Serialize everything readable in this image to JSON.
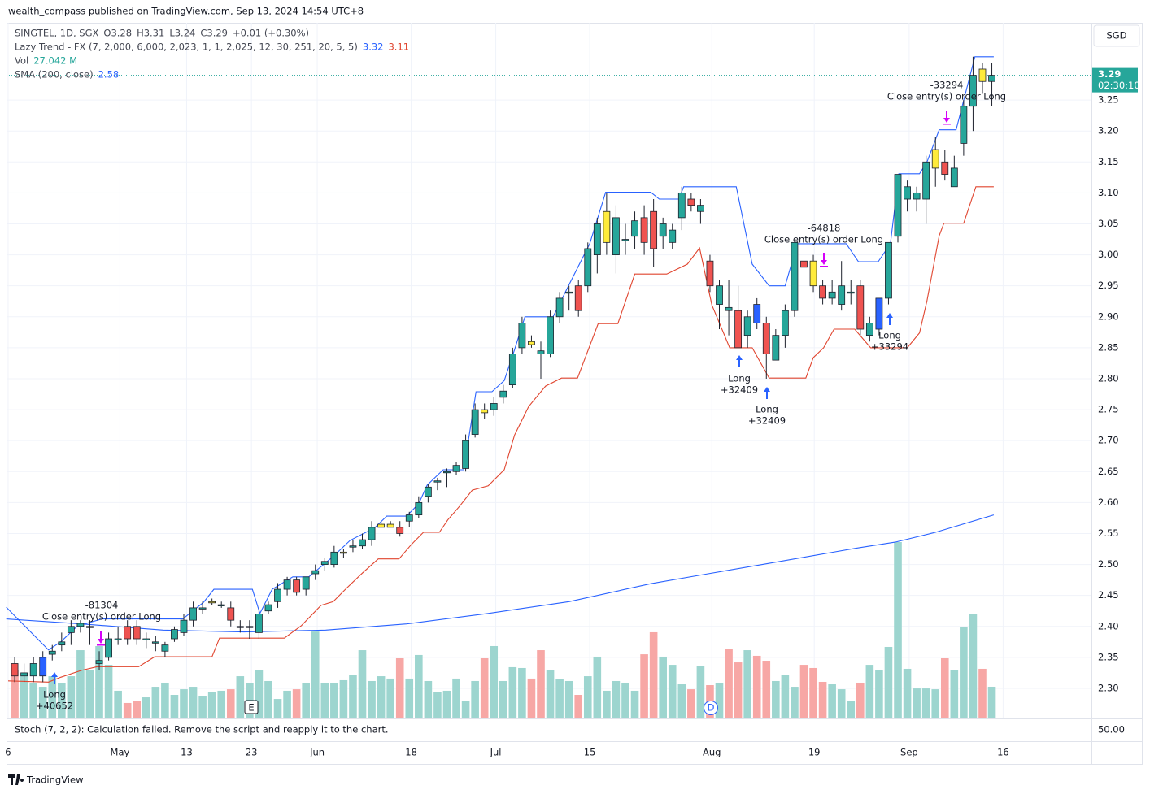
{
  "chart_data": {
    "type": "candlestick",
    "published": "wealth_compass published on TradingView.com, Sep 13, 2024 14:54 UTC+8",
    "legend": {
      "symbol": "SINGTEL, 1D, SGX",
      "open": "O3.28",
      "high": "H3.31",
      "low": "L3.24",
      "close": "C3.29",
      "change": "+0.01 (+0.30%)",
      "indicator": "Lazy Trend - FX (7, 2,000, 6,000, 2,023, 1, 1, 2,025, 12, 30, 251, 20, 5, 5)",
      "upper": "3.32",
      "lower": "3.11",
      "vol": "Vol",
      "vol_value": "27.042 M",
      "sma": "SMA (200, close)",
      "sma_value": "2.58"
    },
    "stoch": "Stoch (7, 2, 2): Calculation failed. Remove the script and reapply it to the chart.",
    "stoch_tick": "50.00",
    "currency": "SGD",
    "last_price_label": "3.29",
    "countdown": "02:30:10",
    "brand": "TradingView",
    "markers": [
      "E",
      "D"
    ],
    "ylim": [
      2.2514,
      3.3748
    ],
    "yticks": [
      {
        "value": 2.3,
        "label": "2.30"
      },
      {
        "value": 2.35,
        "label": "2.35"
      },
      {
        "value": 2.4,
        "label": "2.40"
      },
      {
        "value": 2.45,
        "label": "2.45"
      },
      {
        "value": 2.5,
        "label": "2.50"
      },
      {
        "value": 2.55,
        "label": "2.55"
      },
      {
        "value": 2.6,
        "label": "2.60"
      },
      {
        "value": 2.65,
        "label": "2.65"
      },
      {
        "value": 2.7,
        "label": "2.70"
      },
      {
        "value": 2.75,
        "label": "2.75"
      },
      {
        "value": 2.8,
        "label": "2.80"
      },
      {
        "value": 2.85,
        "label": "2.85"
      },
      {
        "value": 2.9,
        "label": "2.90"
      },
      {
        "value": 2.95,
        "label": "2.95"
      },
      {
        "value": 3.0,
        "label": "3.00"
      },
      {
        "value": 3.05,
        "label": "3.05"
      },
      {
        "value": 3.1,
        "label": "3.10"
      },
      {
        "value": 3.15,
        "label": "3.15"
      },
      {
        "value": 3.2,
        "label": "3.20"
      },
      {
        "value": 3.25,
        "label": "3.25"
      }
    ],
    "xlim": [
      -0.87,
      114.6
    ],
    "xticks": [
      {
        "value": -0.7,
        "label": "6"
      },
      {
        "value": 11.2,
        "label": "May"
      },
      {
        "value": 18.3,
        "label": "13"
      },
      {
        "value": 25.2,
        "label": "23"
      },
      {
        "value": 32.2,
        "label": "Jun"
      },
      {
        "value": 42.2,
        "label": "18"
      },
      {
        "value": 51.2,
        "label": "Jul"
      },
      {
        "value": 61.2,
        "label": "15"
      },
      {
        "value": 74.2,
        "label": "Aug"
      },
      {
        "value": 85.1,
        "label": "19"
      },
      {
        "value": 95.2,
        "label": "Sep"
      },
      {
        "value": 105.2,
        "label": "16"
      }
    ],
    "colors": {
      "up": "#26a69a",
      "down": "#ef5350",
      "yellow": "#ffeb3b",
      "blue": "#2962ff",
      "vol_up": "#9dd5cf",
      "vol_down": "#f7a7a5",
      "upper": "#2962ff",
      "lower": "#e0452f",
      "sma": "#2962ff"
    },
    "ohlc": [
      [
        2.34,
        2.35,
        2.31,
        2.32
      ],
      [
        2.32,
        2.34,
        2.31,
        2.325
      ],
      [
        2.32,
        2.35,
        2.31,
        2.34
      ],
      [
        2.32,
        2.36,
        2.31,
        2.35
      ],
      [
        2.355,
        2.37,
        2.345,
        2.36
      ],
      [
        2.37,
        2.39,
        2.36,
        2.375
      ],
      [
        2.39,
        2.41,
        2.37,
        2.4
      ],
      [
        2.4,
        2.41,
        2.39,
        2.405
      ],
      [
        2.4,
        2.41,
        2.37,
        2.4
      ],
      [
        2.34,
        2.36,
        2.33,
        2.345
      ],
      [
        2.35,
        2.39,
        2.345,
        2.38
      ],
      [
        2.38,
        2.4,
        2.37,
        2.38
      ],
      [
        2.4,
        2.41,
        2.37,
        2.38
      ],
      [
        2.4,
        2.41,
        2.37,
        2.38
      ],
      [
        2.38,
        2.39,
        2.365,
        2.38
      ],
      [
        2.375,
        2.385,
        2.36,
        2.375
      ],
      [
        2.36,
        2.375,
        2.35,
        2.37
      ],
      [
        2.38,
        2.4,
        2.375,
        2.395
      ],
      [
        2.39,
        2.42,
        2.385,
        2.41
      ],
      [
        2.41,
        2.44,
        2.4,
        2.43
      ],
      [
        2.43,
        2.44,
        2.42,
        2.43
      ],
      [
        2.44,
        2.445,
        2.435,
        2.44
      ],
      [
        2.435,
        2.44,
        2.43,
        2.435
      ],
      [
        2.43,
        2.44,
        2.4,
        2.41
      ],
      [
        2.4,
        2.41,
        2.39,
        2.4
      ],
      [
        2.4,
        2.41,
        2.38,
        2.4
      ],
      [
        2.39,
        2.43,
        2.38,
        2.42
      ],
      [
        2.425,
        2.44,
        2.42,
        2.435
      ],
      [
        2.44,
        2.47,
        2.43,
        2.46
      ],
      [
        2.46,
        2.48,
        2.45,
        2.475
      ],
      [
        2.475,
        2.48,
        2.45,
        2.455
      ],
      [
        2.46,
        2.48,
        2.45,
        2.48
      ],
      [
        2.485,
        2.5,
        2.475,
        2.49
      ],
      [
        2.5,
        2.51,
        2.49,
        2.505
      ],
      [
        2.5,
        2.53,
        2.495,
        2.52
      ],
      [
        2.52,
        2.525,
        2.51,
        2.52
      ],
      [
        2.53,
        2.54,
        2.52,
        2.53
      ],
      [
        2.53,
        2.55,
        2.525,
        2.54
      ],
      [
        2.54,
        2.57,
        2.53,
        2.56
      ],
      [
        2.56,
        2.57,
        2.56,
        2.565
      ],
      [
        2.56,
        2.57,
        2.56,
        2.565
      ],
      [
        2.56,
        2.57,
        2.545,
        2.55
      ],
      [
        2.57,
        2.585,
        2.56,
        2.58
      ],
      [
        2.58,
        2.61,
        2.575,
        2.6
      ],
      [
        2.61,
        2.63,
        2.6,
        2.625
      ],
      [
        2.635,
        2.64,
        2.62,
        2.635
      ],
      [
        2.65,
        2.655,
        2.625,
        2.65
      ],
      [
        2.65,
        2.665,
        2.645,
        2.66
      ],
      [
        2.655,
        2.71,
        2.65,
        2.7
      ],
      [
        2.71,
        2.76,
        2.705,
        2.75
      ],
      [
        2.75,
        2.76,
        2.735,
        2.745
      ],
      [
        2.75,
        2.77,
        2.74,
        2.76
      ],
      [
        2.77,
        2.79,
        2.76,
        2.78
      ],
      [
        2.79,
        2.85,
        2.785,
        2.84
      ],
      [
        2.85,
        2.9,
        2.84,
        2.89
      ],
      [
        2.86,
        2.87,
        2.85,
        2.855
      ],
      [
        2.845,
        2.86,
        2.8,
        2.84
      ],
      [
        2.84,
        2.91,
        2.835,
        2.9
      ],
      [
        2.9,
        2.94,
        2.89,
        2.93
      ],
      [
        2.94,
        2.95,
        2.91,
        2.94
      ],
      [
        2.95,
        2.96,
        2.9,
        2.91
      ],
      [
        2.95,
        3.02,
        2.94,
        3.01
      ],
      [
        3.0,
        3.06,
        2.97,
        3.05
      ],
      [
        3.02,
        3.1,
        3.0,
        3.07
      ],
      [
        3.0,
        3.08,
        2.97,
        3.06
      ],
      [
        3.025,
        3.05,
        3.0,
        3.025
      ],
      [
        3.03,
        3.07,
        3.01,
        3.055
      ],
      [
        3.06,
        3.08,
        3.0,
        3.02
      ],
      [
        3.07,
        3.09,
        2.98,
        3.01
      ],
      [
        3.03,
        3.06,
        3.01,
        3.05
      ],
      [
        3.02,
        3.05,
        3.01,
        3.04
      ],
      [
        3.06,
        3.11,
        3.04,
        3.1
      ],
      [
        3.09,
        3.1,
        3.07,
        3.08
      ],
      [
        3.07,
        3.09,
        3.05,
        3.08
      ],
      [
        2.99,
        3.0,
        2.94,
        2.95
      ],
      [
        2.92,
        2.96,
        2.88,
        2.95
      ],
      [
        2.915,
        2.96,
        2.87,
        2.91
      ],
      [
        2.91,
        2.95,
        2.85,
        2.85
      ],
      [
        2.87,
        2.91,
        2.85,
        2.9
      ],
      [
        2.92,
        2.93,
        2.88,
        2.89
      ],
      [
        2.89,
        2.9,
        2.8,
        2.84
      ],
      [
        2.83,
        2.88,
        2.83,
        2.87
      ],
      [
        2.87,
        2.92,
        2.85,
        2.91
      ],
      [
        2.91,
        3.02,
        2.9,
        3.02
      ],
      [
        2.99,
        3.0,
        2.96,
        2.98
      ],
      [
        2.99,
        3.0,
        2.94,
        2.95
      ],
      [
        2.95,
        2.96,
        2.92,
        2.93
      ],
      [
        2.93,
        2.96,
        2.92,
        2.94
      ],
      [
        2.92,
        2.99,
        2.91,
        2.95
      ],
      [
        2.94,
        2.96,
        2.92,
        2.94
      ],
      [
        2.95,
        2.96,
        2.87,
        2.88
      ],
      [
        2.87,
        2.9,
        2.86,
        2.89
      ],
      [
        2.88,
        2.93,
        2.87,
        2.93
      ],
      [
        2.93,
        3.02,
        2.92,
        3.02
      ],
      [
        3.03,
        3.13,
        3.02,
        3.13
      ],
      [
        3.09,
        3.12,
        3.07,
        3.11
      ],
      [
        3.09,
        3.11,
        3.07,
        3.1
      ],
      [
        3.09,
        3.16,
        3.05,
        3.15
      ],
      [
        3.14,
        3.19,
        3.11,
        3.17
      ],
      [
        3.15,
        3.17,
        3.12,
        3.13
      ],
      [
        3.11,
        3.16,
        3.11,
        3.14
      ],
      [
        3.18,
        3.25,
        3.16,
        3.24
      ],
      [
        3.24,
        3.32,
        3.2,
        3.29
      ],
      [
        3.3,
        3.31,
        3.26,
        3.28
      ],
      [
        3.28,
        3.31,
        3.24,
        3.29
      ]
    ],
    "bar_colors": [
      "down",
      "up",
      "up",
      "blue",
      "up",
      "up",
      "up",
      "up",
      "up",
      "up",
      "up",
      "up",
      "down",
      "down",
      "up",
      "up",
      "up",
      "up",
      "up",
      "up",
      "up",
      "yellow",
      "up",
      "down",
      "up",
      "up",
      "up",
      "up",
      "up",
      "up",
      "down",
      "up",
      "up",
      "up",
      "up",
      "yellow",
      "up",
      "up",
      "up",
      "yellow",
      "yellow",
      "down",
      "up",
      "up",
      "up",
      "up",
      "up",
      "up",
      "up",
      "up",
      "yellow",
      "up",
      "up",
      "up",
      "up",
      "yellow",
      "up",
      "up",
      "up",
      "up",
      "down",
      "up",
      "up",
      "yellow",
      "up",
      "up",
      "up",
      "down",
      "down",
      "up",
      "up",
      "up",
      "down",
      "up",
      "down",
      "up",
      "up",
      "down",
      "up",
      "blue",
      "down",
      "up",
      "up",
      "up",
      "down",
      "yellow",
      "down",
      "up",
      "up",
      "up",
      "down",
      "up",
      "blue",
      "up",
      "up",
      "up",
      "up",
      "up",
      "yellow",
      "down",
      "up",
      "up",
      "up",
      "yellow",
      "up"
    ],
    "volume": [
      40.9,
      36.0,
      30.5,
      27.0,
      36.0,
      30.5,
      36.0,
      58.2,
      40.9,
      61.7,
      45.7,
      23.6,
      13.2,
      15.2,
      18.0,
      27.0,
      30.5,
      20.1,
      24.9,
      27.0,
      19.4,
      22.2,
      23.6,
      24.9,
      36.0,
      30.5,
      40.9,
      31.9,
      16.6,
      23.6,
      24.9,
      30.5,
      74.1,
      30.5,
      30.5,
      32.6,
      37.4,
      58.2,
      31.9,
      36.0,
      34.0,
      51.3,
      34.0,
      54.1,
      31.9,
      22.2,
      23.6,
      34.0,
      15.2,
      31.9,
      51.3,
      61.7,
      31.9,
      43.7,
      43.0,
      34.0,
      58.2,
      40.9,
      33.3,
      31.9,
      20.1,
      36.0,
      52.7,
      23.6,
      31.9,
      30.5,
      23.6,
      54.7,
      73.5,
      52.7,
      45.7,
      29.1,
      24.9,
      44.4,
      28.4,
      30.5,
      59.6,
      47.8,
      58.2,
      53.4,
      49.2,
      31.9,
      37.4,
      27.0,
      45.7,
      43.0,
      31.2,
      29.1,
      24.9,
      14.6,
      30.5,
      45.7,
      40.9,
      61.0,
      150.4,
      42.3,
      25.6,
      25.6,
      24.9,
      51.3,
      40.9,
      78.3,
      89.4,
      42.3,
      27.042
    ],
    "upper": {
      "name": "Lazy Trend upper",
      "x": [
        -0.9,
        0.2,
        3.6,
        4.9,
        6.7,
        9.3,
        17.9,
        20.1,
        21.2,
        25.3,
        26.1,
        27.4,
        29.6,
        31.3,
        33.9,
        35.7,
        38.3,
        39.6,
        41.7,
        43.0,
        43.9,
        45.6,
        47.8,
        49.1,
        50.8,
        52.1,
        53.2,
        54.3,
        57.3,
        59.0,
        61.2,
        62.9,
        67.7,
        68.6,
        70.7,
        71.2,
        76.8,
        78.5,
        80.3,
        82.0,
        83.3,
        88.5,
        89.8,
        91.9,
        93.2,
        94.1,
        96.3,
        97.1,
        98.4,
        100.2,
        102.2,
        104.2
      ],
      "values": [
        2.431,
        2.414,
        2.362,
        2.375,
        2.401,
        2.412,
        2.412,
        2.439,
        2.46,
        2.46,
        2.421,
        2.46,
        2.48,
        2.48,
        2.513,
        2.539,
        2.559,
        2.578,
        2.578,
        2.598,
        2.628,
        2.653,
        2.653,
        2.779,
        2.779,
        2.797,
        2.847,
        2.9,
        2.9,
        2.952,
        3.018,
        3.101,
        3.101,
        3.09,
        3.09,
        3.11,
        3.11,
        2.985,
        2.95,
        2.95,
        3.018,
        3.018,
        2.989,
        2.989,
        3.018,
        3.131,
        3.131,
        3.15,
        3.202,
        3.202,
        3.32,
        3.32
      ]
    },
    "lower": {
      "name": "Lazy Trend lower",
      "x": [
        -0.7,
        3.6,
        4.9,
        7.1,
        8.8,
        13.2,
        14.9,
        21.0,
        21.8,
        28.7,
        30.5,
        32.6,
        33.9,
        35.2,
        37.0,
        38.7,
        40.9,
        42.2,
        43.5,
        45.2,
        46.1,
        47.4,
        48.7,
        50.4,
        52.1,
        53.2,
        54.7,
        56.5,
        58.2,
        59.9,
        62.1,
        64.2,
        66.0,
        69.4,
        71.6,
        72.9,
        74.2,
        76.1,
        78.5,
        80.3,
        84.2,
        85.0,
        86.1,
        87.2,
        89.4,
        91.1,
        95.0,
        96.3,
        97.1,
        98.4,
        98.9,
        101.0,
        102.3,
        104.2
      ],
      "values": [
        2.312,
        2.31,
        2.318,
        2.329,
        2.335,
        2.335,
        2.351,
        2.351,
        2.381,
        2.381,
        2.401,
        2.434,
        2.44,
        2.46,
        2.486,
        2.509,
        2.509,
        2.532,
        2.552,
        2.552,
        2.572,
        2.595,
        2.62,
        2.627,
        2.653,
        2.709,
        2.755,
        2.788,
        2.801,
        2.801,
        2.889,
        2.889,
        2.969,
        2.969,
        2.985,
        3.011,
        2.919,
        2.85,
        2.85,
        2.801,
        2.801,
        2.834,
        2.85,
        2.88,
        2.88,
        2.85,
        2.85,
        2.874,
        2.926,
        3.031,
        3.051,
        3.051,
        3.11,
        3.11
      ]
    },
    "sma": {
      "name": "SMA 200",
      "x": [
        -0.9,
        7.1,
        15.8,
        24.4,
        33.1,
        41.7,
        50.4,
        59.0,
        67.7,
        73.8,
        80.7,
        89.4,
        93.7,
        98.0,
        104.2
      ],
      "values": [
        2.412,
        2.404,
        2.394,
        2.391,
        2.394,
        2.404,
        2.421,
        2.44,
        2.469,
        2.485,
        2.503,
        2.526,
        2.536,
        2.552,
        2.58
      ]
    },
    "annotations": [
      {
        "lines": [
          "Long",
          "+40652"
        ]
      },
      {
        "lines": [
          "-81304",
          "Close entry(s) order Long"
        ]
      },
      {
        "lines": [
          "Long",
          "+32409"
        ]
      },
      {
        "lines": [
          "Long",
          "+32409"
        ]
      },
      {
        "lines": [
          "-64818",
          "Close entry(s) order Long"
        ]
      },
      {
        "lines": [
          "Long",
          "+33294"
        ]
      },
      {
        "lines": [
          "-33294",
          "Close entry(s) order Long"
        ]
      }
    ]
  }
}
